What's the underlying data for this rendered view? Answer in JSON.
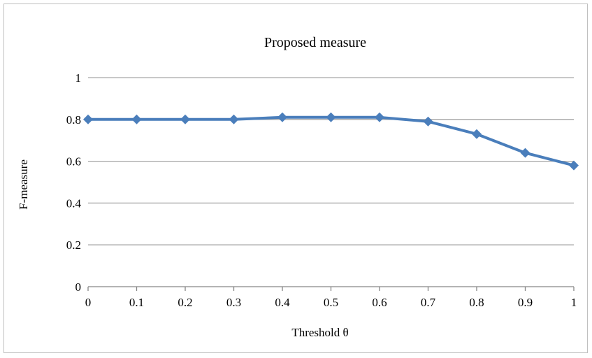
{
  "chart_data": {
    "type": "line",
    "title": "Proposed measure",
    "xlabel": "Threshold θ",
    "ylabel": "F-measure",
    "x": [
      0,
      0.1,
      0.2,
      0.3,
      0.4,
      0.5,
      0.6,
      0.7,
      0.8,
      0.9,
      1
    ],
    "x_tick_labels": [
      "0",
      "0.1",
      "0.2",
      "0.3",
      "0.4",
      "0.5",
      "0.6",
      "0.7",
      "0.8",
      "0.9",
      "1"
    ],
    "y_tick_labels": [
      "0",
      "0.2",
      "0.4",
      "0.6",
      "0.8",
      "1"
    ],
    "series": [
      {
        "values": [
          0.8,
          0.8,
          0.8,
          0.8,
          0.81,
          0.81,
          0.81,
          0.79,
          0.73,
          0.64,
          0.58
        ]
      }
    ],
    "xlim": [
      0,
      1
    ],
    "ylim": [
      0,
      1
    ],
    "grid": "horizontal",
    "legend": "none",
    "colors": {
      "line": "#4a7ebb",
      "grid": "#a6a6a6",
      "axis": "#868686"
    },
    "marker": "diamond"
  }
}
